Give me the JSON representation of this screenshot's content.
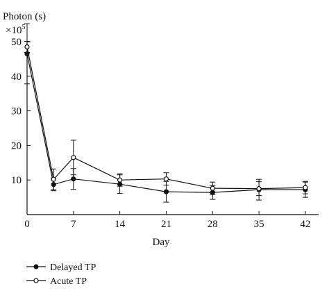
{
  "chart_data": {
    "type": "line",
    "ylabel": "Photon (s)",
    "y_multiplier_base": "×10",
    "y_multiplier_exp": "5",
    "xlabel": "Day",
    "x": [
      0,
      4,
      7,
      14,
      21,
      28,
      35,
      42
    ],
    "x_ticks": [
      0,
      7,
      14,
      21,
      28,
      35,
      42
    ],
    "y_ticks": [
      10,
      20,
      30,
      40,
      50
    ],
    "xlim": [
      0,
      44
    ],
    "ylim": [
      0,
      50
    ],
    "grid": false,
    "legend_placement": "bottom-left",
    "series": [
      {
        "name": "Delayed TP",
        "marker": "filled",
        "values": [
          46.5,
          8.7,
          10.3,
          8.8,
          6.6,
          6.4,
          7.2,
          7.2
        ],
        "error": [
          8.7,
          1.8,
          3.0,
          2.7,
          3.0,
          2.0,
          3.0,
          2.2
        ]
      },
      {
        "name": "Acute TP",
        "marker": "open",
        "values": [
          48.5,
          10.2,
          16.5,
          10.0,
          10.3,
          7.6,
          7.5,
          7.8
        ],
        "error": [
          1.6,
          3.0,
          5.0,
          1.8,
          1.8,
          1.8,
          2.0,
          1.8
        ]
      }
    ]
  }
}
